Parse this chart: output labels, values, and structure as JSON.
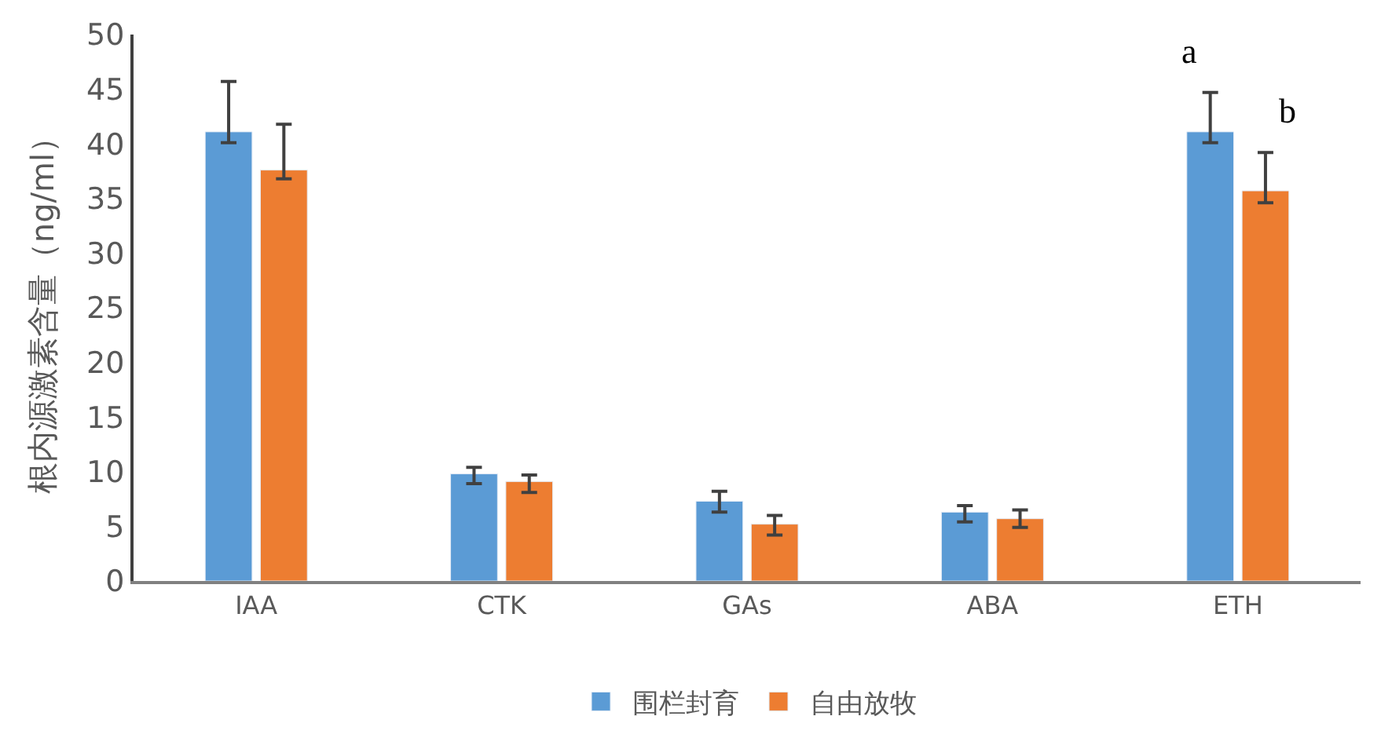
{
  "chart_data": {
    "type": "bar",
    "ylabel": "根内源激素含量（ng/ml）",
    "categories": [
      "IAA",
      "CTK",
      "GAs",
      "ABA",
      "ETH"
    ],
    "series": [
      {
        "name": "围栏封育",
        "color": "#5b9bd5",
        "values": [
          41.1,
          9.8,
          7.3,
          6.3,
          41.1
        ],
        "errors": [
          [
            40.1,
            45.7
          ],
          [
            8.9,
            10.4
          ],
          [
            6.3,
            8.2
          ],
          [
            5.4,
            6.9
          ],
          [
            40.1,
            44.7
          ]
        ]
      },
      {
        "name": "自由放牧",
        "color": "#ed7d31",
        "values": [
          37.6,
          9.1,
          5.2,
          5.7,
          35.7
        ],
        "errors": [
          [
            36.8,
            41.8
          ],
          [
            8.1,
            9.7
          ],
          [
            4.2,
            6.0
          ],
          [
            4.9,
            6.5
          ],
          [
            34.6,
            39.2
          ]
        ]
      }
    ],
    "annotations": [
      "a",
      "b"
    ],
    "ylim": [
      0,
      50
    ],
    "yticks": [
      0,
      5,
      10,
      15,
      20,
      25,
      30,
      35,
      40,
      45,
      50
    ],
    "legend": "bottom"
  }
}
